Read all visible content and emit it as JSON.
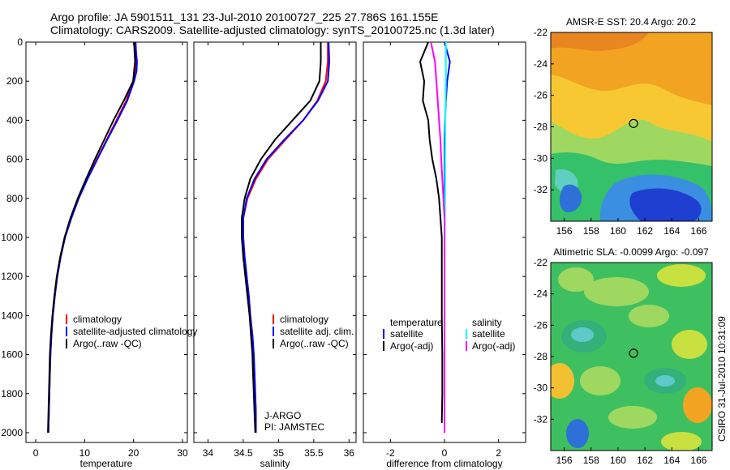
{
  "header": {
    "line1": "Argo profile: JA 5901511_131 23-Jul-2010 20100727_225 27.786S 161.155E",
    "line2": "Climatology: CARS2009. Satellite-adjusted climatology: synTS_20100725.nc (1.3d later)"
  },
  "side_text": "CSIRO 31-Jul-2010 10:31:09",
  "colors": {
    "red": "#ff0000",
    "blue": "#0000ff",
    "black": "#000000",
    "cyan": "#00ffff",
    "magenta": "#ff00ff"
  },
  "chart_data": [
    {
      "type": "line",
      "xlabel": "temperature",
      "ylabel": "",
      "xlim": [
        -2,
        31
      ],
      "ylim": [
        2050,
        0
      ],
      "xticks": [
        0,
        10,
        20,
        30
      ],
      "yticks": [
        0,
        200,
        400,
        600,
        800,
        1000,
        1200,
        1400,
        1600,
        1800,
        2000
      ],
      "legend": [
        "climatology",
        "satellite-adjusted climatology",
        "Argo(..raw -QC)"
      ],
      "series": [
        {
          "name": "climatology",
          "color": "red",
          "points": [
            [
              20.4,
              0
            ],
            [
              20.5,
              50
            ],
            [
              20.6,
              100
            ],
            [
              20.4,
              150
            ],
            [
              19.9,
              200
            ],
            [
              18.5,
              300
            ],
            [
              16.5,
              400
            ],
            [
              14.5,
              500
            ],
            [
              12.5,
              600
            ],
            [
              10.5,
              700
            ],
            [
              8.7,
              800
            ],
            [
              7.2,
              900
            ],
            [
              6.0,
              1000
            ],
            [
              5.1,
              1100
            ],
            [
              4.4,
              1200
            ],
            [
              3.9,
              1300
            ],
            [
              3.5,
              1400
            ],
            [
              3.2,
              1500
            ],
            [
              3.0,
              1600
            ],
            [
              2.9,
              1700
            ],
            [
              2.8,
              1800
            ],
            [
              2.7,
              1900
            ],
            [
              2.6,
              2000
            ]
          ]
        },
        {
          "name": "satellite-adjusted climatology",
          "color": "blue",
          "points": [
            [
              20.4,
              0
            ],
            [
              20.5,
              50
            ],
            [
              20.7,
              100
            ],
            [
              20.6,
              150
            ],
            [
              20.1,
              200
            ],
            [
              18.7,
              300
            ],
            [
              16.7,
              400
            ],
            [
              14.6,
              500
            ],
            [
              12.6,
              600
            ],
            [
              10.6,
              700
            ],
            [
              8.8,
              800
            ],
            [
              7.3,
              900
            ],
            [
              6.0,
              1000
            ],
            [
              5.1,
              1100
            ],
            [
              4.4,
              1200
            ],
            [
              3.9,
              1300
            ],
            [
              3.5,
              1400
            ],
            [
              3.2,
              1500
            ],
            [
              3.0,
              1600
            ],
            [
              2.9,
              1700
            ],
            [
              2.8,
              1800
            ],
            [
              2.7,
              1900
            ],
            [
              2.6,
              2000
            ]
          ]
        },
        {
          "name": "Argo(..raw -QC)",
          "color": "black",
          "points": [
            [
              20.1,
              0
            ],
            [
              20.2,
              50
            ],
            [
              20.3,
              100
            ],
            [
              19.9,
              200
            ],
            [
              18.0,
              300
            ],
            [
              15.9,
              400
            ],
            [
              14.0,
              500
            ],
            [
              12.1,
              600
            ],
            [
              10.3,
              700
            ],
            [
              8.6,
              800
            ],
            [
              7.1,
              900
            ],
            [
              5.9,
              1000
            ],
            [
              5.0,
              1100
            ],
            [
              4.3,
              1200
            ],
            [
              3.8,
              1300
            ],
            [
              3.4,
              1400
            ],
            [
              3.1,
              1500
            ],
            [
              2.9,
              1600
            ],
            [
              2.8,
              1700
            ],
            [
              2.7,
              1800
            ],
            [
              2.6,
              1900
            ],
            [
              2.5,
              2000
            ]
          ]
        }
      ]
    },
    {
      "type": "line",
      "xlabel": "salinity",
      "ylabel": "",
      "xlim": [
        33.8,
        36.1
      ],
      "ylim": [
        2050,
        0
      ],
      "xticks": [
        34,
        34.5,
        35,
        35.5,
        36
      ],
      "yticks": [
        0,
        200,
        400,
        600,
        800,
        1000,
        1200,
        1400,
        1600,
        1800,
        2000
      ],
      "legend": [
        "climatology",
        "satellite adj. clim.",
        "Argo(..raw -QC)"
      ],
      "annotation": [
        "J-ARGO",
        "PI: JAMSTEC"
      ],
      "series": [
        {
          "name": "climatology",
          "color": "red",
          "points": [
            [
              35.7,
              0
            ],
            [
              35.7,
              100
            ],
            [
              35.67,
              200
            ],
            [
              35.55,
              300
            ],
            [
              35.35,
              400
            ],
            [
              35.1,
              500
            ],
            [
              34.85,
              600
            ],
            [
              34.68,
              700
            ],
            [
              34.56,
              800
            ],
            [
              34.5,
              900
            ],
            [
              34.5,
              1000
            ],
            [
              34.52,
              1100
            ],
            [
              34.55,
              1200
            ],
            [
              34.58,
              1300
            ],
            [
              34.6,
              1400
            ],
            [
              34.63,
              1500
            ],
            [
              34.65,
              1600
            ],
            [
              34.66,
              1700
            ],
            [
              34.67,
              1800
            ],
            [
              34.68,
              1900
            ],
            [
              34.68,
              2000
            ]
          ]
        },
        {
          "name": "satellite adj. clim.",
          "color": "blue",
          "points": [
            [
              35.71,
              0
            ],
            [
              35.72,
              100
            ],
            [
              35.7,
              200
            ],
            [
              35.56,
              300
            ],
            [
              35.35,
              400
            ],
            [
              35.08,
              500
            ],
            [
              34.83,
              600
            ],
            [
              34.66,
              700
            ],
            [
              34.55,
              800
            ],
            [
              34.5,
              900
            ],
            [
              34.5,
              1000
            ],
            [
              34.52,
              1100
            ],
            [
              34.55,
              1200
            ],
            [
              34.58,
              1300
            ],
            [
              34.6,
              1400
            ],
            [
              34.63,
              1500
            ],
            [
              34.65,
              1600
            ],
            [
              34.66,
              1700
            ],
            [
              34.67,
              1800
            ],
            [
              34.68,
              1900
            ],
            [
              34.68,
              2000
            ]
          ]
        },
        {
          "name": "Argo(..raw -QC)",
          "color": "black",
          "points": [
            [
              35.6,
              0
            ],
            [
              35.6,
              100
            ],
            [
              35.58,
              200
            ],
            [
              35.45,
              300
            ],
            [
              35.2,
              400
            ],
            [
              34.95,
              500
            ],
            [
              34.75,
              600
            ],
            [
              34.6,
              700
            ],
            [
              34.52,
              800
            ],
            [
              34.48,
              900
            ],
            [
              34.48,
              1000
            ],
            [
              34.5,
              1100
            ],
            [
              34.53,
              1200
            ],
            [
              34.56,
              1300
            ],
            [
              34.59,
              1400
            ],
            [
              34.61,
              1500
            ],
            [
              34.63,
              1600
            ],
            [
              34.64,
              1700
            ],
            [
              34.65,
              1800
            ],
            [
              34.66,
              1900
            ],
            [
              34.67,
              2000
            ]
          ]
        }
      ]
    },
    {
      "type": "line",
      "xlabel": "difference from climatology",
      "ylabel": "",
      "xlim": [
        -3,
        3
      ],
      "ylim": [
        2050,
        0
      ],
      "xticks": [
        -2,
        0,
        2
      ],
      "yticks": [
        0,
        200,
        400,
        600,
        800,
        1000,
        1200,
        1400,
        1600,
        1800,
        2000
      ],
      "legend_left": {
        "title": "temperature",
        "items": [
          "satellite",
          "Argo(-adj)"
        ]
      },
      "legend_right": {
        "title": "salinity",
        "items": [
          "satellite",
          "Argo(-adj)"
        ]
      },
      "series": [
        {
          "name": "temperature satellite",
          "color": "blue",
          "points": [
            [
              0,
              0
            ],
            [
              0.1,
              50
            ],
            [
              0.2,
              100
            ],
            [
              0.15,
              150
            ],
            [
              0.1,
              200
            ],
            [
              0.05,
              300
            ],
            [
              0.02,
              400
            ],
            [
              0,
              500
            ],
            [
              0,
              700
            ],
            [
              0,
              900
            ],
            [
              0,
              2000
            ]
          ]
        },
        {
          "name": "temperature Argo(-adj)",
          "color": "black",
          "points": [
            [
              -0.6,
              0
            ],
            [
              -0.9,
              100
            ],
            [
              -0.75,
              200
            ],
            [
              -0.8,
              300
            ],
            [
              -0.6,
              400
            ],
            [
              -0.55,
              500
            ],
            [
              -0.45,
              600
            ],
            [
              -0.3,
              700
            ],
            [
              -0.2,
              800
            ],
            [
              -0.1,
              1000
            ],
            [
              -0.1,
              1200
            ],
            [
              -0.1,
              1400
            ],
            [
              -0.08,
              1600
            ],
            [
              -0.08,
              1800
            ],
            [
              -0.1,
              1950
            ]
          ]
        },
        {
          "name": "salinity satellite",
          "color": "cyan",
          "points": [
            [
              0.05,
              0
            ],
            [
              0.05,
              200
            ],
            [
              0.03,
              400
            ],
            [
              0.02,
              600
            ],
            [
              0.02,
              800
            ],
            [
              0.01,
              1000
            ],
            [
              0,
              1200
            ],
            [
              0,
              2000
            ]
          ]
        },
        {
          "name": "salinity Argo(-adj)",
          "color": "magenta",
          "points": [
            [
              -0.5,
              0
            ],
            [
              -0.35,
              100
            ],
            [
              -0.3,
              200
            ],
            [
              -0.25,
              300
            ],
            [
              -0.2,
              400
            ],
            [
              -0.15,
              500
            ],
            [
              -0.12,
              600
            ],
            [
              -0.08,
              700
            ],
            [
              -0.04,
              800
            ],
            [
              0,
              900
            ],
            [
              0,
              1000
            ],
            [
              0,
              2000
            ]
          ]
        }
      ]
    },
    {
      "type": "heatmap",
      "title": "AMSR-E SST: 20.4 Argo: 20.2",
      "xlim": [
        155,
        167
      ],
      "ylim": [
        -34,
        -22
      ],
      "xticks": [
        156,
        158,
        160,
        162,
        164,
        166
      ],
      "yticks": [
        -22,
        -24,
        -26,
        -28,
        -30,
        -32
      ],
      "marker": [
        161.155,
        -27.786
      ]
    },
    {
      "type": "heatmap",
      "title": "Altimetric SLA: -0.0099 Argo: -0.097",
      "xlim": [
        155,
        167
      ],
      "ylim": [
        -34,
        -22
      ],
      "xticks": [
        156,
        158,
        160,
        162,
        164,
        166
      ],
      "yticks": [
        -22,
        -24,
        -26,
        -28,
        -30,
        -32
      ],
      "marker": [
        161.155,
        -27.786
      ]
    }
  ]
}
